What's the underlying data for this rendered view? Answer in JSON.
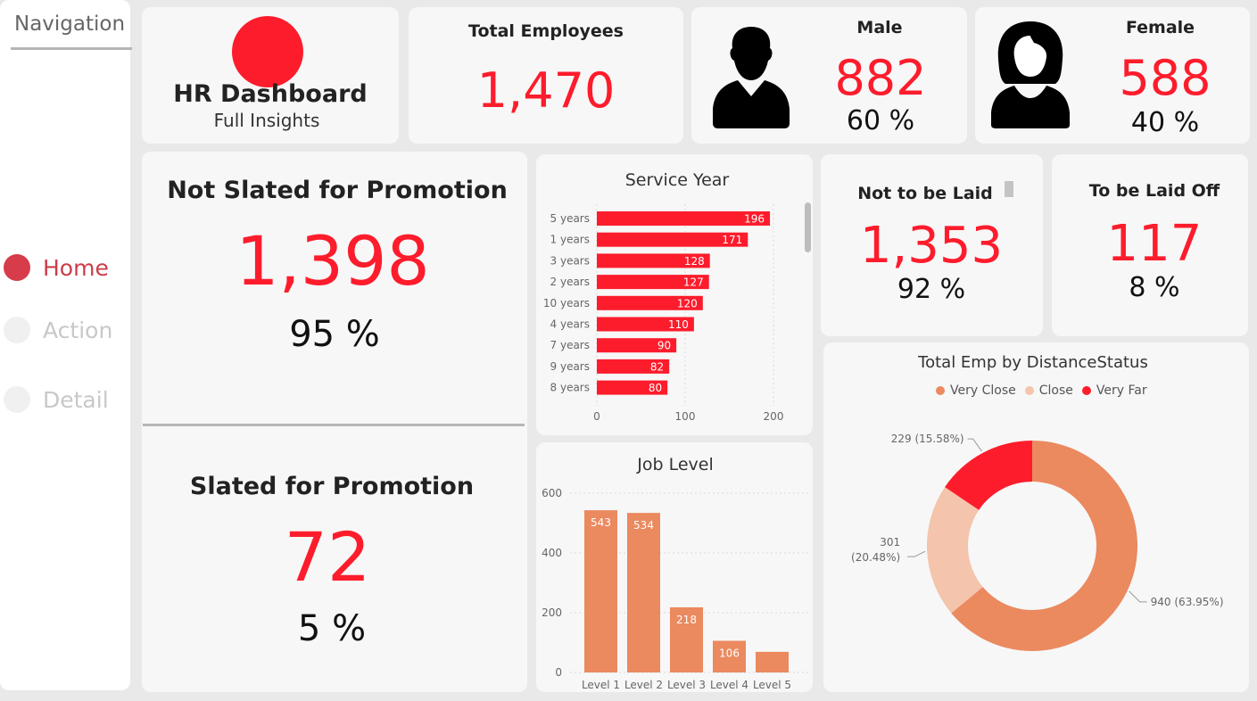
{
  "nav": {
    "title": "Navigation",
    "items": [
      {
        "label": "Home",
        "active": true
      },
      {
        "label": "Action",
        "active": false
      },
      {
        "label": "Detail",
        "active": false
      }
    ]
  },
  "header": {
    "title": "HR Dashboard",
    "subtitle": "Full Insights",
    "logo_color": "#fd1c2c"
  },
  "kpis": {
    "total": {
      "title": "Total Employees",
      "value": "1,470"
    },
    "male": {
      "title": "Male",
      "value": "882",
      "pct": "60 %",
      "icon": "male-person-icon"
    },
    "female": {
      "title": "Female",
      "value": "588",
      "pct": "40 %",
      "icon": "female-person-icon"
    },
    "not_promo": {
      "title": "Not Slated for Promotion",
      "value": "1,398",
      "pct": "95 %"
    },
    "promo": {
      "title": "Slated for Promotion",
      "value": "72",
      "pct": "5 %"
    },
    "not_laid": {
      "title": "Not to be Laid",
      "value": "1,353",
      "pct": "92 %"
    },
    "laid_off": {
      "title": "To be Laid Off",
      "value": "117",
      "pct": "8 %"
    }
  },
  "colors": {
    "accent": "#fd1c2c",
    "orange": "#eb895f",
    "light_orange": "#f4c4ac"
  },
  "chart_data": [
    {
      "type": "bar",
      "orientation": "horizontal",
      "title": "Service Year",
      "categories": [
        "5 years",
        "1 years",
        "3 years",
        "2 years",
        "10 years",
        "4 years",
        "7 years",
        "9 years",
        "8 years"
      ],
      "values": [
        196,
        171,
        128,
        127,
        120,
        110,
        90,
        82,
        80
      ],
      "xticks": [
        0,
        100,
        200
      ],
      "xlim": [
        0,
        200
      ],
      "color": "#fd1c2c"
    },
    {
      "type": "bar",
      "title": "Job Level",
      "categories": [
        "Level 1",
        "Level 2",
        "Level 3",
        "Level 4",
        "Level 5"
      ],
      "values": [
        543,
        534,
        218,
        106,
        69
      ],
      "data_labels": [
        "543",
        "534",
        "218",
        "106",
        ""
      ],
      "yticks": [
        0,
        200,
        400,
        600
      ],
      "ylim": [
        0,
        600
      ],
      "color": "#eb895f"
    },
    {
      "type": "pie",
      "donut": true,
      "title": "Total Emp by DistanceStatus",
      "legend": [
        "Very Close",
        "Close",
        "Very Far"
      ],
      "legend_position": "top",
      "slices": [
        {
          "name": "Very Close",
          "value": 940,
          "label": "940 (63.95%)",
          "color": "#eb895f"
        },
        {
          "name": "Close",
          "value": 301,
          "label_line1": "301",
          "label_line2": "(20.48%)",
          "color": "#f4c4ac"
        },
        {
          "name": "Very Far",
          "value": 229,
          "label": "229 (15.58%)",
          "color": "#fd1c2c"
        }
      ]
    }
  ]
}
